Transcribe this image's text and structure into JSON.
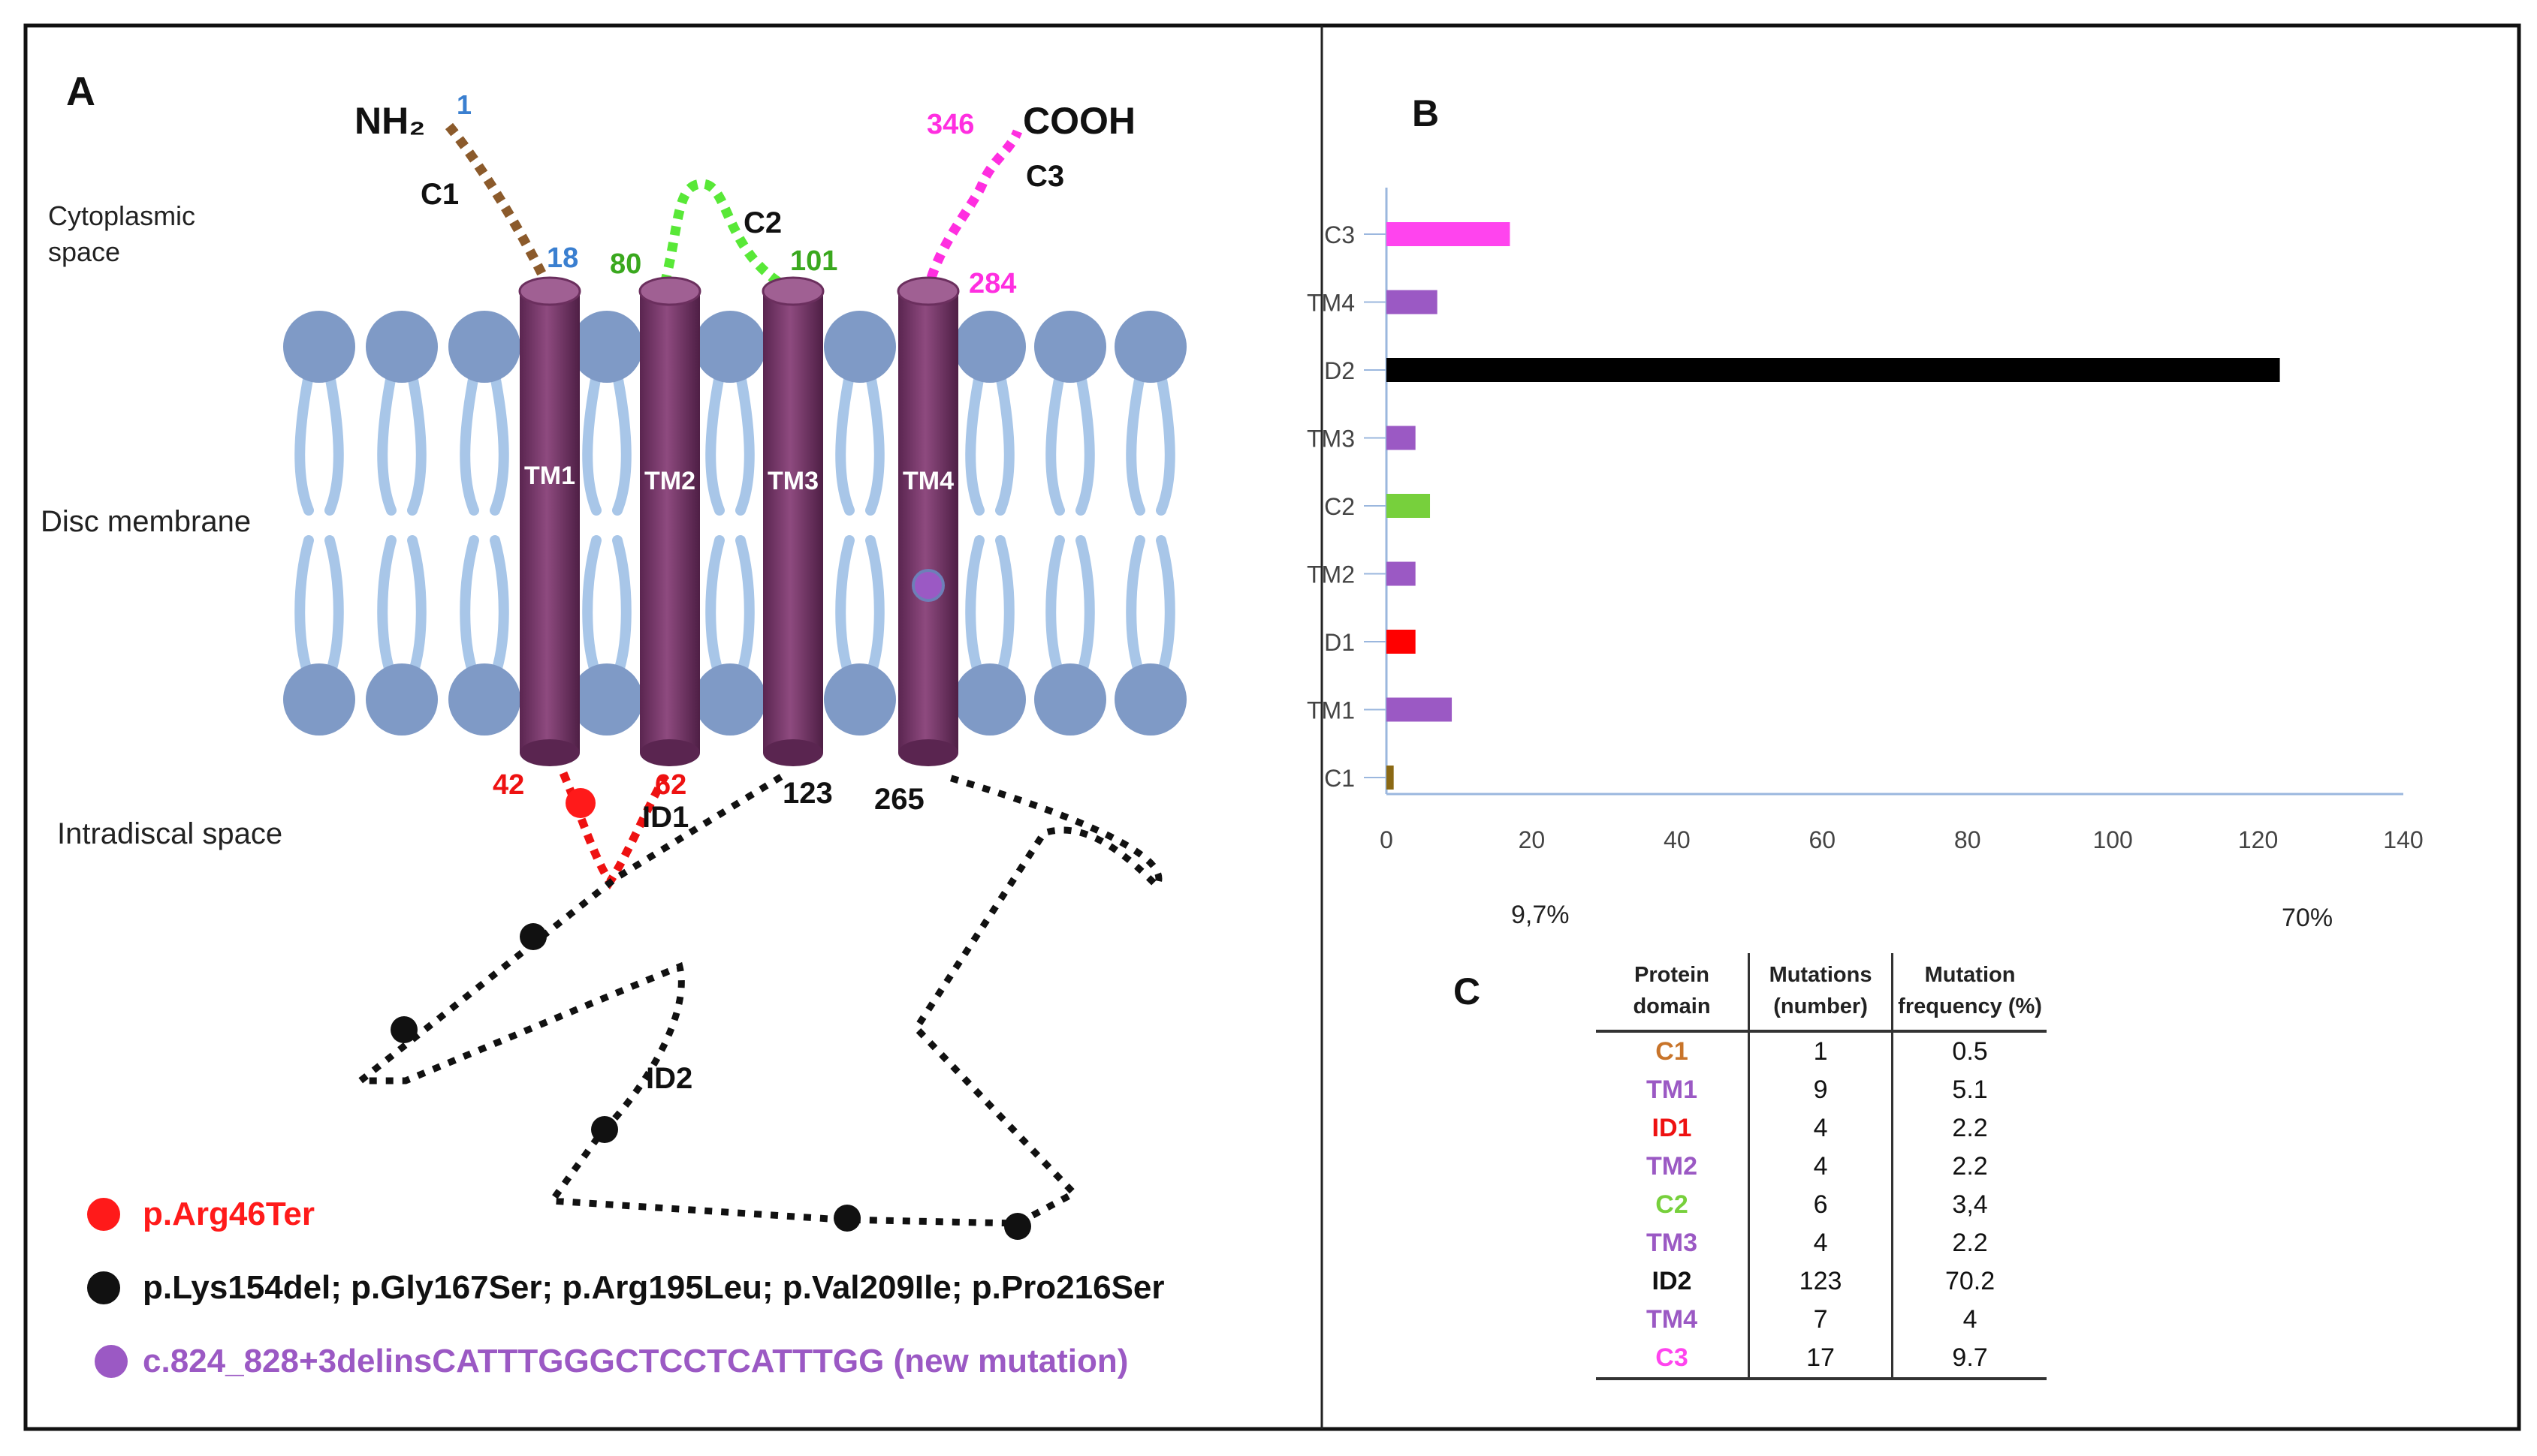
{
  "panels": {
    "a": {
      "label": "A",
      "n_terminus": "NH₂",
      "c_terminus": "COOH",
      "regions": {
        "cytoplasmic": "Cytoplasmic space",
        "membrane": "Disc membrane",
        "intradiscal": "Intradiscal space"
      },
      "domains": [
        "C1",
        "C2",
        "C3",
        "ID1",
        "ID2"
      ],
      "helices": [
        "TM1",
        "TM2",
        "TM3",
        "TM4"
      ],
      "residues": [
        "1",
        "18",
        "80",
        "101",
        "346",
        "284",
        "42",
        "62",
        "123",
        "265"
      ],
      "legend": [
        {
          "text": "p.Arg46Ter",
          "color": "#ff1a1a"
        },
        {
          "text": "p.Lys154del; p.Gly167Ser; p.Arg195Leu; p.Val209Ile; p.Pro216Ser",
          "color": "#111111"
        },
        {
          "text": "c.824_828+3delinsCATTTGGGCTCCTCATTTGG (new mutation)",
          "color": "#9b59b6"
        }
      ]
    },
    "b": {
      "label": "B"
    },
    "c": {
      "label": "C"
    }
  },
  "chart_data": {
    "type": "bar",
    "orientation": "horizontal",
    "categories": [
      "C3",
      "TM4",
      "D2",
      "TM3",
      "C2",
      "TM2",
      "D1",
      "TM1",
      "C1"
    ],
    "values": [
      17,
      7,
      123,
      4,
      6,
      4,
      4,
      9,
      1
    ],
    "colors": [
      "#ff44ee",
      "#9b59c4",
      "#000000",
      "#9b59c4",
      "#77d03c",
      "#9b59c4",
      "#ff0000",
      "#9b59c4",
      "#8b6914"
    ],
    "xlim": [
      0,
      140
    ],
    "xticks": [
      "0",
      "20",
      "40",
      "60",
      "80",
      "100",
      "120",
      "140"
    ],
    "annotations": [
      "9,7%",
      "70%"
    ],
    "title": "",
    "xlabel": "",
    "ylabel": ""
  },
  "table": {
    "headers": [
      "Protein domain",
      "Mutations (number)",
      "Mutation frequency (%)"
    ],
    "rows": [
      {
        "domain": "C1",
        "number": "1",
        "freq": "0.5",
        "color": "#c8742a"
      },
      {
        "domain": "TM1",
        "number": "9",
        "freq": "5.1",
        "color": "#9b59c4"
      },
      {
        "domain": "ID1",
        "number": "4",
        "freq": "2.2",
        "color": "#ee1111"
      },
      {
        "domain": "TM2",
        "number": "4",
        "freq": "2.2",
        "color": "#9b59c4"
      },
      {
        "domain": "C2",
        "number": "6",
        "freq": "3,4",
        "color": "#77d03c"
      },
      {
        "domain": "TM3",
        "number": "4",
        "freq": "2.2",
        "color": "#9b59c4"
      },
      {
        "domain": "ID2",
        "number": "123",
        "freq": "70.2",
        "color": "#111111"
      },
      {
        "domain": "TM4",
        "number": "7",
        "freq": "4",
        "color": "#9b59c4"
      },
      {
        "domain": "C3",
        "number": "17",
        "freq": "9.7",
        "color": "#ff44ee"
      }
    ]
  }
}
